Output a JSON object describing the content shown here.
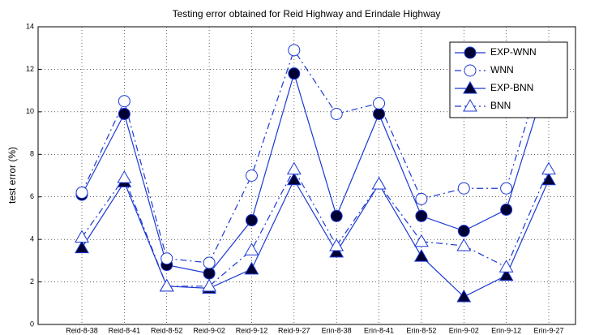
{
  "chart_data": {
    "type": "line",
    "title": "Testing error obtained for Reid Highway and Erindale Highway",
    "y_label": "test error (%)",
    "categories": [
      "Reid-8-38",
      "Reid-8-41",
      "Reid-8-52",
      "Reid-9-02",
      "Reid-9-12",
      "Reid-9-27",
      "Erin-8-38",
      "Erin-8-41",
      "Erin-8-52",
      "Erin-9-02",
      "Erin-9-12",
      "Erin-9-27"
    ],
    "series": [
      {
        "name": "EXP-WNN",
        "color": "#1c39d4",
        "marker": "circle",
        "filled": true,
        "dashed": false,
        "values": [
          6.1,
          9.9,
          2.8,
          2.4,
          4.9,
          11.8,
          5.1,
          9.9,
          5.1,
          4.4,
          5.4,
          11.8
        ]
      },
      {
        "name": "WNN",
        "color": "#1c39d4",
        "marker": "circle",
        "filled": false,
        "dashed": true,
        "values": [
          6.2,
          10.5,
          3.1,
          2.9,
          7.0,
          12.9,
          9.9,
          10.4,
          5.9,
          6.4,
          6.4,
          12.9
        ]
      },
      {
        "name": "EXP-BNN",
        "color": "#1c39d4",
        "marker": "triangle",
        "filled": true,
        "dashed": false,
        "values": [
          3.6,
          6.7,
          1.8,
          1.7,
          2.6,
          6.8,
          3.4,
          6.6,
          3.2,
          1.3,
          2.3,
          6.8
        ]
      },
      {
        "name": "BNN",
        "color": "#1c39d4",
        "marker": "triangle",
        "filled": false,
        "dashed": true,
        "values": [
          4.1,
          6.9,
          1.8,
          1.8,
          3.5,
          7.3,
          3.7,
          6.6,
          3.9,
          3.7,
          2.7,
          7.3
        ]
      }
    ],
    "ylim": [
      0,
      14
    ],
    "yticks": [
      0,
      2,
      4,
      6,
      8,
      10,
      12,
      14
    ],
    "grid": true,
    "legend": "top-right"
  }
}
